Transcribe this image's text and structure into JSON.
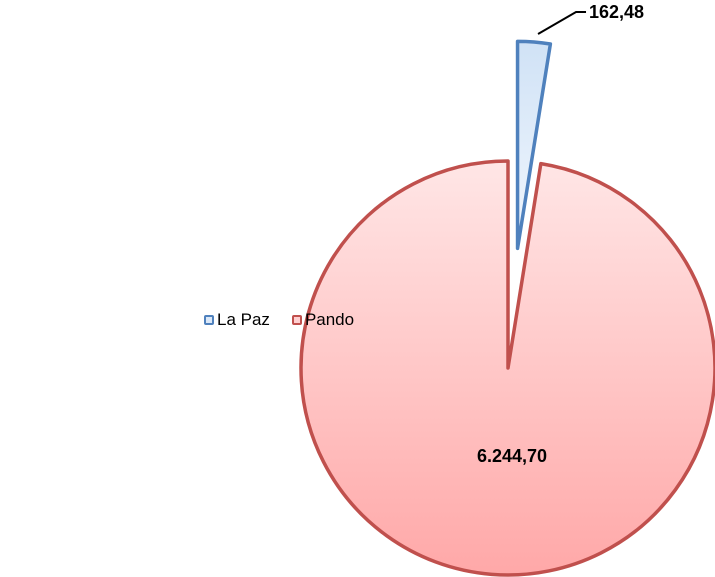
{
  "chart_data": {
    "type": "pie",
    "categories": [
      "La Paz",
      "Pando"
    ],
    "values": [
      162.48,
      6244.7
    ],
    "data_labels": [
      "162,48",
      "6.244,70"
    ],
    "colors": {
      "La Paz": {
        "fill": "#dbe8f8",
        "stroke": "#4f81bd"
      },
      "Pando": {
        "fill": "#ffcfd0",
        "stroke": "#c0504d"
      }
    },
    "exploded": [
      "La Paz"
    ],
    "legend_position": "left"
  }
}
